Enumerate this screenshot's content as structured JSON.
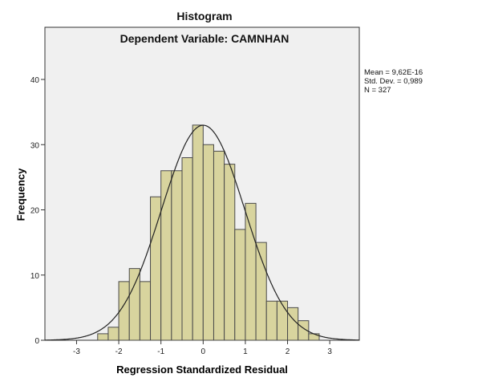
{
  "chart_data": {
    "type": "bar",
    "title": "Histogram",
    "subtitle": "Dependent Variable: CAMNHAN",
    "xlabel": "Regression Standardized Residual",
    "ylabel": "Frequency",
    "bin_edges": [
      -2.5,
      -2.25,
      -2.0,
      -1.75,
      -1.5,
      -1.25,
      -1.0,
      -0.75,
      -0.5,
      -0.25,
      0.0,
      0.25,
      0.5,
      0.75,
      1.0,
      1.25,
      1.5,
      1.75,
      2.0,
      2.25,
      2.5,
      2.75
    ],
    "values": [
      1,
      2,
      9,
      11,
      9,
      22,
      26,
      26,
      28,
      33,
      30,
      29,
      27,
      17,
      21,
      15,
      6,
      6,
      5,
      3,
      1
    ],
    "xlim": [
      -3.75,
      3.7
    ],
    "ylim": [
      0,
      48
    ],
    "xticks": [
      "-3",
      "-2",
      "-1",
      "0",
      "1",
      "2",
      "3"
    ],
    "yticks": [
      "0",
      "10",
      "20",
      "30",
      "40"
    ],
    "normal_curve": {
      "mean": 0,
      "sd": 0.989
    },
    "stats": {
      "mean": "Mean = 9,62E-16",
      "sd": "Std. Dev. = 0,989",
      "n": "N = 327"
    },
    "grid": false,
    "colors": {
      "bar": "#d8d49e",
      "plot_bg": "#f0f0f0",
      "edge": "#4a4a4a",
      "curve": "#222222"
    }
  }
}
